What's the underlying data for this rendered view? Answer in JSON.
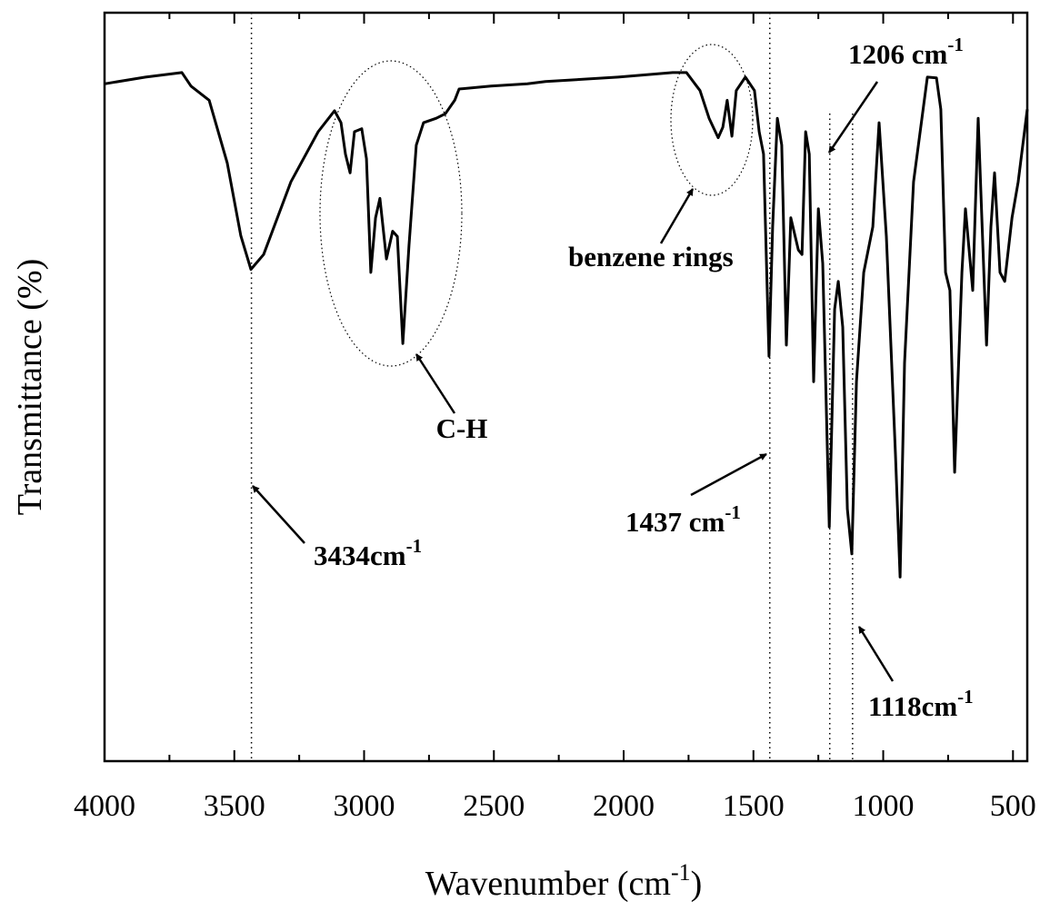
{
  "chart_data": {
    "type": "line",
    "xlabel": {
      "text": "Wavenumber (cm",
      "sup": "-1",
      "after": ")"
    },
    "ylabel": "Transmittance (%)",
    "xlim": [
      4000,
      445
    ],
    "ylim": [
      0,
      100
    ],
    "xticks": [
      4000,
      3500,
      3000,
      2500,
      2000,
      1500,
      1000,
      500
    ],
    "xminorticks": [
      3750,
      3250,
      2750,
      2250,
      1750,
      1250,
      750
    ],
    "color": "#000000",
    "x": [
      4000,
      3842,
      3702,
      3667,
      3597,
      3527,
      3475,
      3436,
      3387,
      3282,
      3177,
      3114,
      3089,
      3072,
      3054,
      3037,
      3009,
      2991,
      2974,
      2956,
      2939,
      2914,
      2890,
      2872,
      2851,
      2827,
      2799,
      2771,
      2722,
      2687,
      2651,
      2634,
      2511,
      2371,
      2301,
      2021,
      1811,
      1758,
      1706,
      1671,
      1636,
      1618,
      1601,
      1583,
      1566,
      1531,
      1496,
      1478,
      1461,
      1440,
      1426,
      1408,
      1391,
      1373,
      1356,
      1327,
      1313,
      1299,
      1285,
      1268,
      1250,
      1233,
      1208,
      1187,
      1173,
      1156,
      1138,
      1121,
      1103,
      1075,
      1040,
      1016,
      988,
      953,
      935,
      918,
      883,
      830,
      795,
      778,
      760,
      743,
      725,
      697,
      683,
      655,
      634,
      620,
      602,
      585,
      571,
      550,
      532,
      504,
      480,
      445
    ],
    "values": [
      90.5,
      91.4,
      92.0,
      90.2,
      88.3,
      79.9,
      70.2,
      65.7,
      67.7,
      77.4,
      84.1,
      86.9,
      85.3,
      81.1,
      78.6,
      84.1,
      84.5,
      80.5,
      65.3,
      72.6,
      75.2,
      67.1,
      70.8,
      70.1,
      55.8,
      68.9,
      82.3,
      85.3,
      85.9,
      86.5,
      88.3,
      89.8,
      90.2,
      90.5,
      90.8,
      91.4,
      92.0,
      92.0,
      89.6,
      85.9,
      83.3,
      84.7,
      88.3,
      83.5,
      89.6,
      91.4,
      89.6,
      84.1,
      81.1,
      54.1,
      71.4,
      85.9,
      82.3,
      55.6,
      72.6,
      68.3,
      67.7,
      84.1,
      81.1,
      50.7,
      73.8,
      66.5,
      31.3,
      60.4,
      64.1,
      58.0,
      33.7,
      27.7,
      50.7,
      65.3,
      71.4,
      85.3,
      70.1,
      41.0,
      24.6,
      53.2,
      77.4,
      91.4,
      91.3,
      87.1,
      65.3,
      62.9,
      38.6,
      65.3,
      73.8,
      62.9,
      85.9,
      72.6,
      55.6,
      71.4,
      78.6,
      65.3,
      64.1,
      72.6,
      77.4,
      87.1
    ],
    "annotations": [
      {
        "text": "3434cm",
        "sup": "-1",
        "x": 3434
      },
      {
        "text": "1437 cm",
        "sup": "-1",
        "x": 1437
      },
      {
        "text": "1206 cm",
        "sup": "-1",
        "x": 1206
      },
      {
        "text": "1118cm",
        "sup": "-1",
        "x": 1118
      },
      {
        "text": "C-H"
      },
      {
        "text": "benzene rings"
      }
    ]
  }
}
